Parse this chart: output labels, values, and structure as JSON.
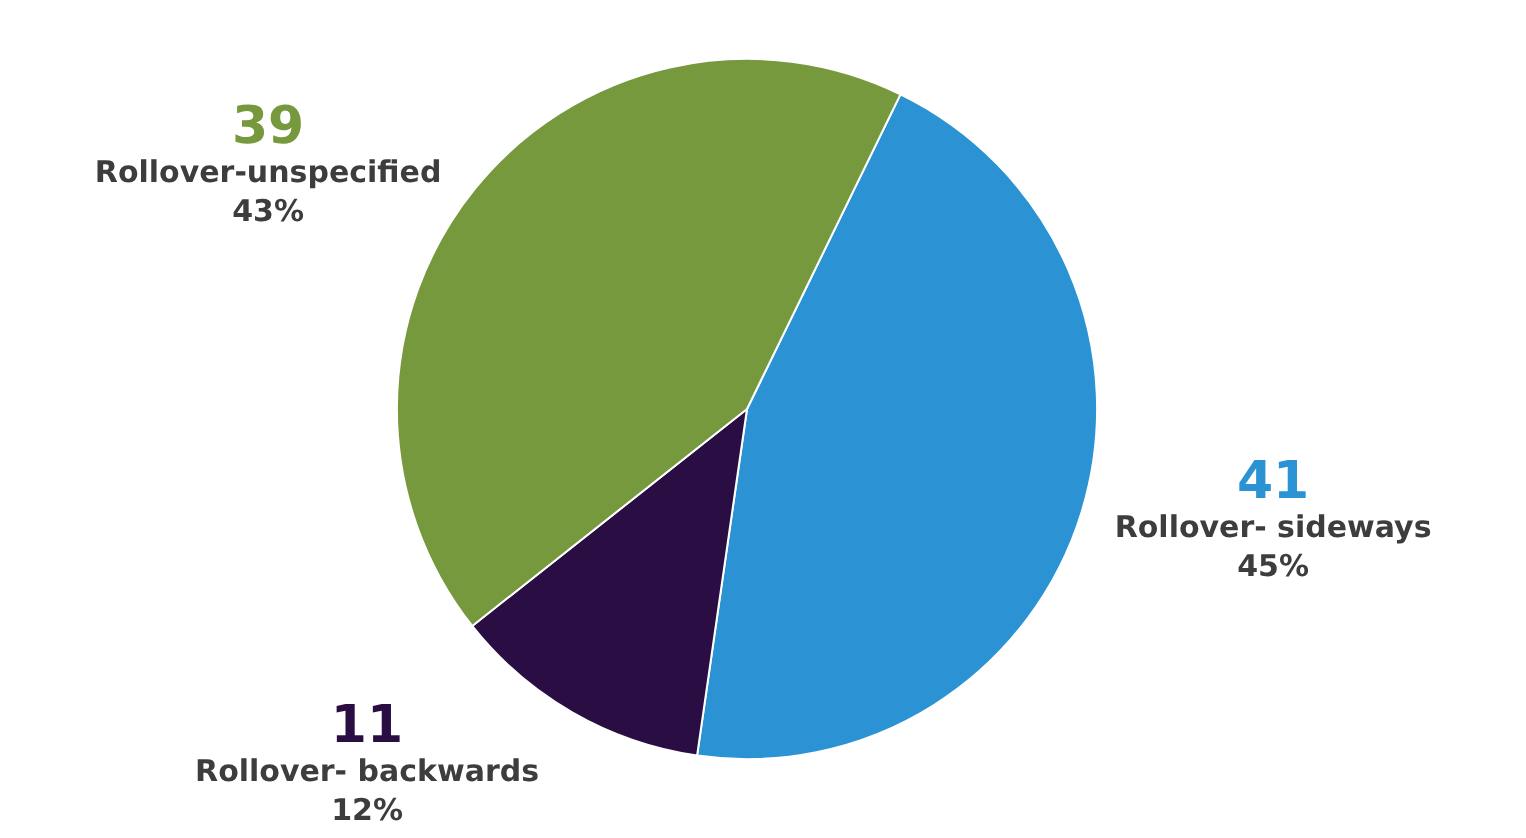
{
  "chart_data": {
    "type": "pie",
    "categories": [
      "Rollover- sideways",
      "Rollover- backwards",
      "Rollover-unspecified"
    ],
    "values": [
      41,
      11,
      39
    ],
    "colors": [
      "#2b93d3",
      "#2a0e43",
      "#76993d"
    ],
    "value_labels": [
      "41",
      "11",
      "39"
    ],
    "annotations": [
      "45%",
      "12%",
      "43%"
    ],
    "legend": false
  }
}
